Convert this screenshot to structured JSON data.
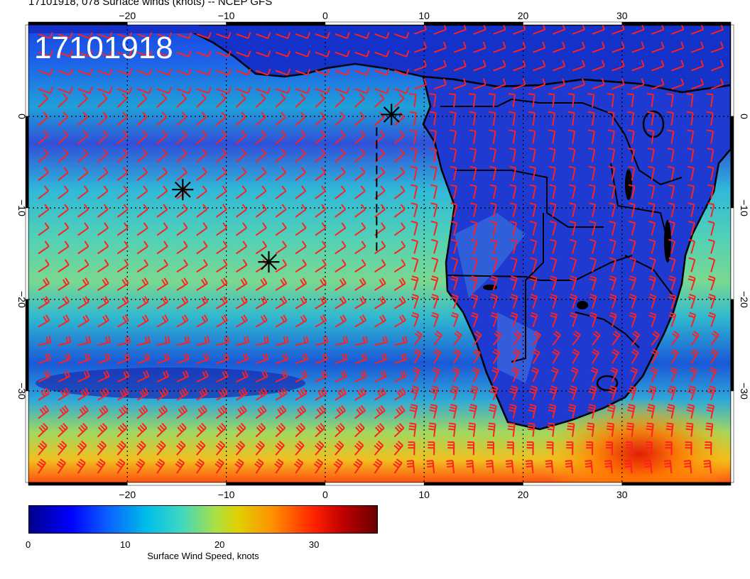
{
  "title": "17101918, 078 Surface winds (knots) -- NCEP GFS",
  "stamp": "17101918",
  "map": {
    "lon_range": [
      -30,
      41
    ],
    "lat_range": [
      -40,
      10
    ],
    "lon_ticks": [
      "−20",
      "−10",
      "0",
      "10",
      "20",
      "30"
    ],
    "lon_tick_values": [
      -20,
      -10,
      0,
      10,
      20,
      30
    ],
    "lat_ticks": [
      "0",
      "−10",
      "−20",
      "−30"
    ],
    "lat_tick_values": [
      0,
      -10,
      -20,
      -30
    ],
    "grid": "dotted",
    "markers": [
      {
        "name": "star",
        "lon": 6.7,
        "lat": 0.2
      },
      {
        "name": "star",
        "lon": -14.4,
        "lat": -8.0
      },
      {
        "name": "star",
        "lon": -5.7,
        "lat": -15.9
      }
    ],
    "dashed_track": [
      [
        5.2,
        -1.2
      ],
      [
        5.2,
        -14.8
      ]
    ],
    "colors": {
      "barb": "#ff2020",
      "coast": "#000000"
    }
  },
  "colorbar": {
    "ticks": [
      "0",
      "10",
      "20",
      "30"
    ],
    "tick_values": [
      0,
      10,
      20,
      30
    ],
    "max": 37,
    "label": "Surface Wind Speed, knots"
  }
}
